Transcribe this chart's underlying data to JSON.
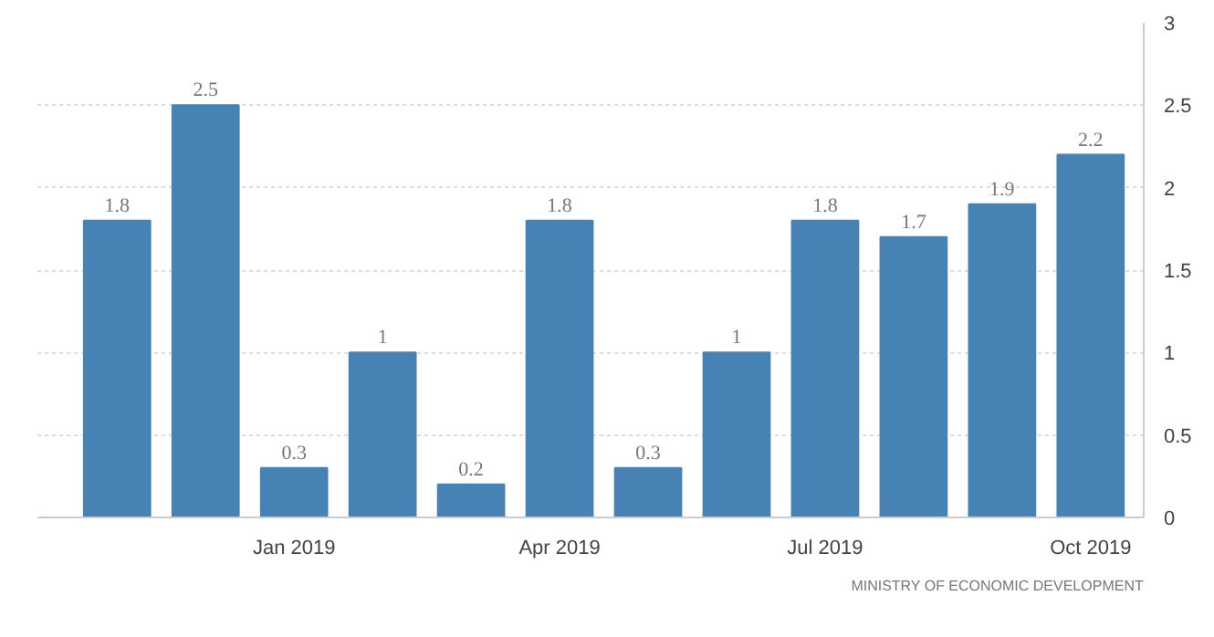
{
  "chart_data": {
    "type": "bar",
    "categories": [
      null,
      null,
      "Jan 2019",
      null,
      null,
      "Apr 2019",
      null,
      null,
      "Jul 2019",
      null,
      null,
      "Oct 2019"
    ],
    "values": [
      1.8,
      2.5,
      0.3,
      1,
      0.2,
      1.8,
      0.3,
      1,
      1.8,
      1.7,
      1.9,
      2.2
    ],
    "color": "#4682b4",
    "ylim": [
      0,
      3
    ],
    "yticks": [
      0,
      0.5,
      1,
      1.5,
      2,
      2.5,
      3
    ],
    "grid": "y",
    "data_labels": true,
    "annotations": [
      "MINISTRY OF ECONOMIC DEVELOPMENT"
    ]
  }
}
